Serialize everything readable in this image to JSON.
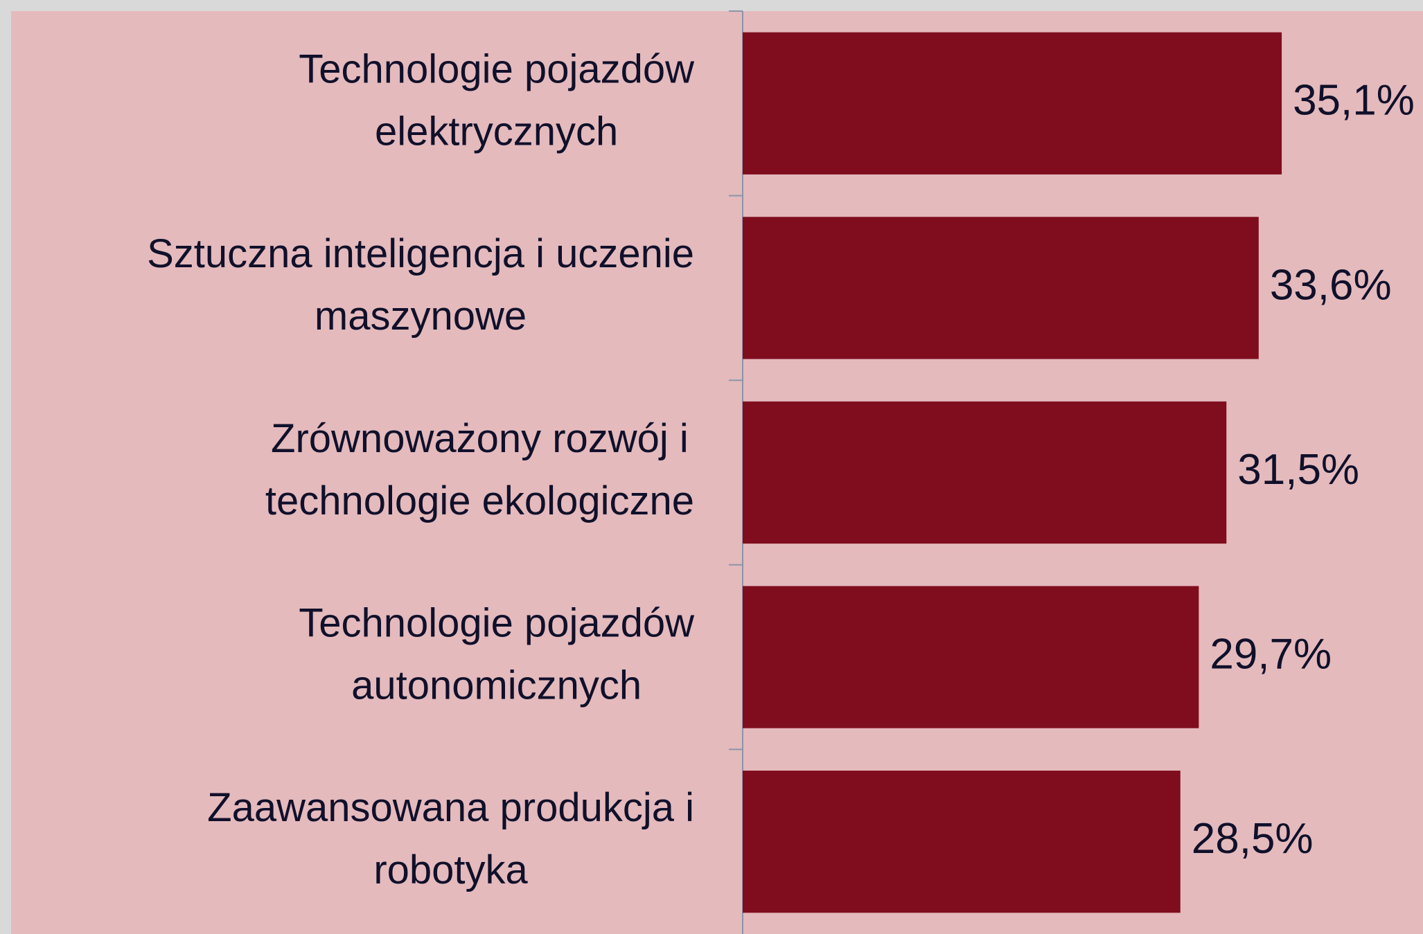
{
  "chart_data": {
    "type": "bar",
    "orientation": "horizontal",
    "categories": [
      [
        "Technologie pojazdów",
        "elektrycznych"
      ],
      [
        "Sztuczna inteligencja i uczenie",
        "maszynowe"
      ],
      [
        "Zrównoważony rozwój i",
        "technologie ekologiczne"
      ],
      [
        "Technologie pojazdów",
        "autonomicznych"
      ],
      [
        "Zaawansowana produkcja i",
        "robotyka"
      ]
    ],
    "values": [
      35.1,
      33.6,
      31.5,
      29.7,
      28.5
    ],
    "value_labels": [
      "35,1%",
      "33,6%",
      "31,5%",
      "29,7%",
      "28,5%"
    ],
    "color": "#7f0d1d",
    "xlim": [
      0,
      44.3
    ]
  }
}
